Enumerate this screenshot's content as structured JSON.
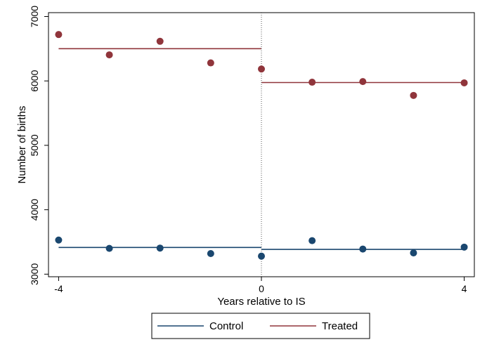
{
  "chart_data": {
    "type": "scatter",
    "title": "",
    "xlabel": "Years relative to IS",
    "ylabel": "Number of births",
    "xlim": [
      -4.2,
      4.2
    ],
    "ylim": [
      2960,
      7060
    ],
    "xticks": [
      -4,
      0,
      4
    ],
    "xtick_labels": [
      "-4",
      "0",
      "4"
    ],
    "yticks": [
      3000,
      4000,
      5000,
      6000,
      7000
    ],
    "ytick_labels": [
      "3000",
      "4000",
      "5000",
      "6000",
      "7000"
    ],
    "grid": false,
    "legend_position": "bottom",
    "vertical_reference_line": 0,
    "x": [
      -4,
      -3,
      -2,
      -1,
      0,
      1,
      2,
      3,
      4
    ],
    "series": [
      {
        "name": "Control",
        "color": "#1a476f",
        "values": [
          3530,
          3400,
          3405,
          3320,
          3280,
          3520,
          3390,
          3330,
          3420
        ],
        "fit_segments": [
          {
            "x": [
              -4,
              0
            ],
            "y": [
              3415,
              3415
            ]
          },
          {
            "x": [
              0,
              4
            ],
            "y": [
              3385,
              3385
            ]
          }
        ]
      },
      {
        "name": "Treated",
        "color": "#90353b",
        "values": [
          6720,
          6405,
          6615,
          6280,
          6185,
          5980,
          5990,
          5775,
          5970
        ],
        "fit_segments": [
          {
            "x": [
              -4,
              0
            ],
            "y": [
              6500,
              6500
            ]
          },
          {
            "x": [
              0,
              4
            ],
            "y": [
              5975,
              5975
            ]
          }
        ]
      }
    ]
  }
}
